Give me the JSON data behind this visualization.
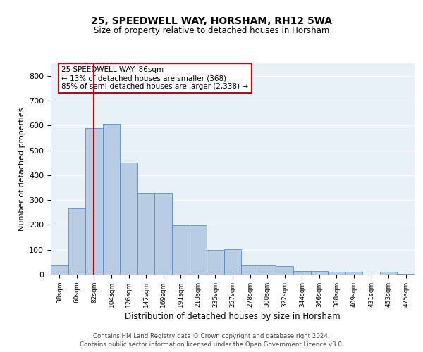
{
  "title1": "25, SPEEDWELL WAY, HORSHAM, RH12 5WA",
  "title2": "Size of property relative to detached houses in Horsham",
  "xlabel": "Distribution of detached houses by size in Horsham",
  "ylabel": "Number of detached properties",
  "categories": [
    "38sqm",
    "60sqm",
    "82sqm",
    "104sqm",
    "126sqm",
    "147sqm",
    "169sqm",
    "191sqm",
    "213sqm",
    "235sqm",
    "257sqm",
    "278sqm",
    "300sqm",
    "322sqm",
    "344sqm",
    "366sqm",
    "388sqm",
    "409sqm",
    "431sqm",
    "453sqm",
    "475sqm"
  ],
  "values": [
    38,
    265,
    590,
    605,
    450,
    328,
    328,
    197,
    197,
    100,
    103,
    38,
    38,
    35,
    13,
    13,
    10,
    10,
    0,
    10,
    4
  ],
  "bar_color": "#b8cce4",
  "bar_edge_color": "#5b8dc8",
  "vline_x": 2,
  "vline_color": "#cc0000",
  "annotation_box_text": "25 SPEEDWELL WAY: 86sqm\n← 13% of detached houses are smaller (368)\n85% of semi-detached houses are larger (2,338) →",
  "ylim": [
    0,
    850
  ],
  "yticks": [
    0,
    100,
    200,
    300,
    400,
    500,
    600,
    700,
    800
  ],
  "footer1": "Contains HM Land Registry data © Crown copyright and database right 2024.",
  "footer2": "Contains public sector information licensed under the Open Government Licence v3.0.",
  "plot_bg_color": "#e8f0f8"
}
